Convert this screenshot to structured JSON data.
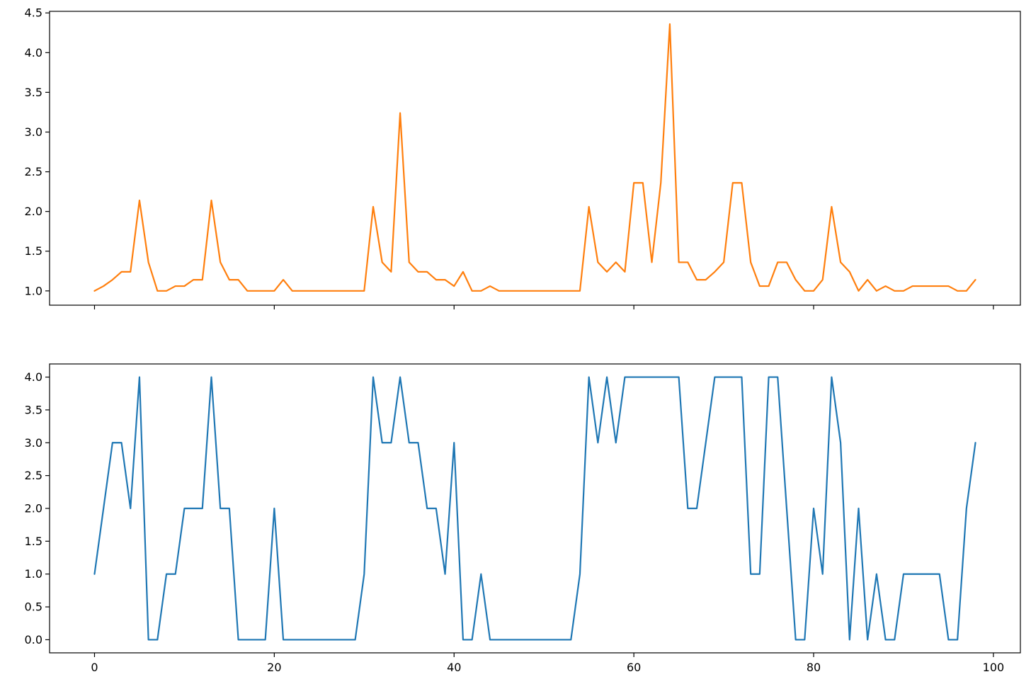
{
  "chart_data": [
    {
      "type": "line",
      "title": "",
      "xlabel": "",
      "ylabel": "",
      "xlim": [
        -5,
        103
      ],
      "ylim": [
        0.82,
        4.52
      ],
      "xticks": [
        0,
        20,
        40,
        60,
        80,
        100
      ],
      "xtick_labels_visible": false,
      "yticks": [
        1.0,
        1.5,
        2.0,
        2.5,
        3.0,
        3.5,
        4.0,
        4.5
      ],
      "ytick_labels": [
        "1.0",
        "1.5",
        "2.0",
        "2.5",
        "3.0",
        "3.5",
        "4.0",
        "4.5"
      ],
      "grid": false,
      "series": [
        {
          "color": "#ff7f0e",
          "x": [
            0,
            1,
            2,
            3,
            4,
            5,
            6,
            7,
            8,
            9,
            10,
            11,
            12,
            13,
            14,
            15,
            16,
            17,
            18,
            19,
            20,
            21,
            22,
            23,
            24,
            25,
            26,
            27,
            28,
            29,
            30,
            31,
            32,
            33,
            34,
            35,
            36,
            37,
            38,
            39,
            40,
            41,
            42,
            43,
            44,
            45,
            46,
            47,
            48,
            49,
            50,
            51,
            52,
            53,
            54,
            55,
            56,
            57,
            58,
            59,
            60,
            61,
            62,
            63,
            64,
            65,
            66,
            67,
            68,
            69,
            70,
            71,
            72,
            73,
            74,
            75,
            76,
            77,
            78,
            79,
            80,
            81,
            82,
            83,
            84,
            85,
            86,
            87,
            88,
            89,
            90,
            91,
            92,
            93,
            94,
            95,
            96,
            97,
            98
          ],
          "y": [
            1.0,
            1.06,
            1.14,
            1.24,
            1.24,
            2.14,
            1.36,
            1.0,
            1.0,
            1.06,
            1.06,
            1.14,
            1.14,
            2.14,
            1.36,
            1.14,
            1.14,
            1.0,
            1.0,
            1.0,
            1.0,
            1.14,
            1.0,
            1.0,
            1.0,
            1.0,
            1.0,
            1.0,
            1.0,
            1.0,
            1.0,
            2.06,
            1.36,
            1.24,
            3.24,
            1.36,
            1.24,
            1.24,
            1.14,
            1.14,
            1.06,
            1.24,
            1.0,
            1.0,
            1.06,
            1.0,
            1.0,
            1.0,
            1.0,
            1.0,
            1.0,
            1.0,
            1.0,
            1.0,
            1.0,
            2.06,
            1.36,
            1.24,
            1.36,
            1.24,
            2.36,
            2.36,
            1.36,
            2.36,
            4.36,
            1.36,
            1.36,
            1.14,
            1.14,
            1.24,
            1.36,
            2.36,
            2.36,
            1.36,
            1.06,
            1.06,
            1.36,
            1.36,
            1.14,
            1.0,
            1.0,
            1.14,
            2.06,
            1.36,
            1.24,
            1.0,
            1.14,
            1.0,
            1.06,
            1.0,
            1.0,
            1.06,
            1.06,
            1.06,
            1.06,
            1.06,
            1.0,
            1.0,
            1.14
          ]
        }
      ]
    },
    {
      "type": "line",
      "title": "",
      "xlabel": "",
      "ylabel": "",
      "xlim": [
        -5,
        103
      ],
      "ylim": [
        -0.2,
        4.2
      ],
      "xticks": [
        0,
        20,
        40,
        60,
        80,
        100
      ],
      "xtick_labels": [
        "0",
        "20",
        "40",
        "60",
        "80",
        "100"
      ],
      "yticks": [
        0.0,
        0.5,
        1.0,
        1.5,
        2.0,
        2.5,
        3.0,
        3.5,
        4.0
      ],
      "ytick_labels": [
        "0.0",
        "0.5",
        "1.0",
        "1.5",
        "2.0",
        "2.5",
        "3.0",
        "3.5",
        "4.0"
      ],
      "grid": false,
      "series": [
        {
          "color": "#1f77b4",
          "x": [
            0,
            1,
            2,
            3,
            4,
            5,
            6,
            7,
            8,
            9,
            10,
            11,
            12,
            13,
            14,
            15,
            16,
            17,
            18,
            19,
            20,
            21,
            22,
            23,
            24,
            25,
            26,
            27,
            28,
            29,
            30,
            31,
            32,
            33,
            34,
            35,
            36,
            37,
            38,
            39,
            40,
            41,
            42,
            43,
            44,
            45,
            46,
            47,
            48,
            49,
            50,
            51,
            52,
            53,
            54,
            55,
            56,
            57,
            58,
            59,
            60,
            61,
            62,
            63,
            64,
            65,
            66,
            67,
            68,
            69,
            70,
            71,
            72,
            73,
            74,
            75,
            76,
            77,
            78,
            79,
            80,
            81,
            82,
            83,
            84,
            85,
            86,
            87,
            88,
            89,
            90,
            91,
            92,
            93,
            94,
            95,
            96,
            97,
            98
          ],
          "y": [
            1,
            2,
            3,
            3,
            2,
            4,
            0,
            0,
            1,
            1,
            2,
            2,
            2,
            4,
            2,
            2,
            0,
            0,
            0,
            0,
            2,
            0,
            0,
            0,
            0,
            0,
            0,
            0,
            0,
            0,
            1,
            4,
            3,
            3,
            4,
            3,
            3,
            2,
            2,
            1,
            3,
            0,
            0,
            1,
            0,
            0,
            0,
            0,
            0,
            0,
            0,
            0,
            0,
            0,
            1,
            4,
            3,
            4,
            3,
            4,
            4,
            4,
            4,
            4,
            4,
            4,
            2,
            2,
            3,
            4,
            4,
            4,
            4,
            1,
            1,
            4,
            4,
            2,
            0,
            0,
            2,
            1,
            4,
            3,
            0,
            2,
            0,
            1,
            0,
            0,
            1,
            1,
            1,
            1,
            1,
            0,
            0,
            2,
            3
          ]
        }
      ]
    }
  ]
}
